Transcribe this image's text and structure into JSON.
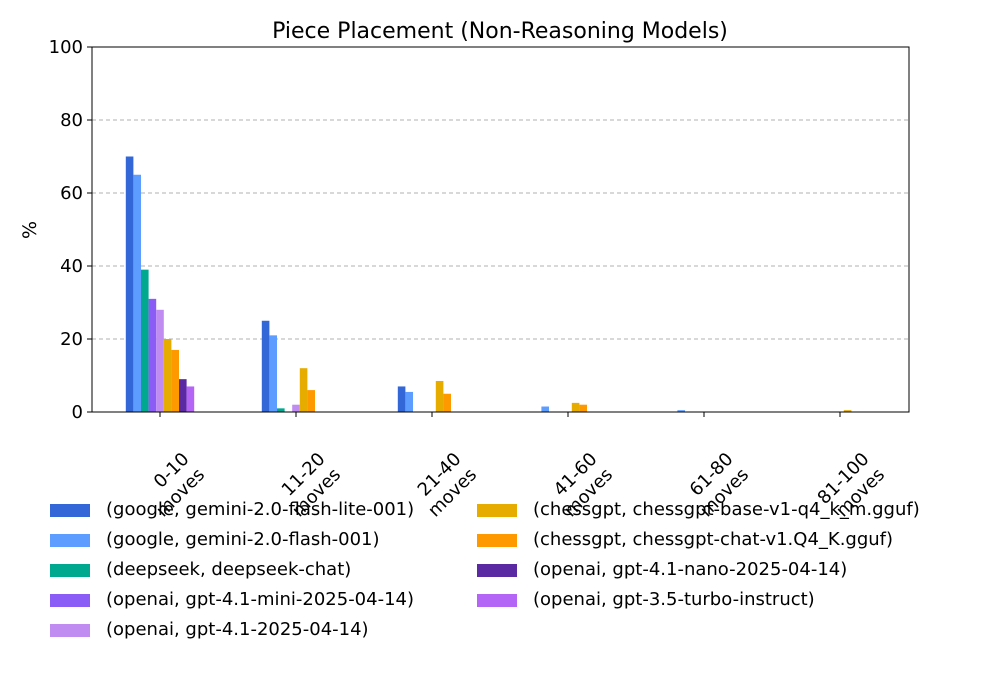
{
  "chart_data": {
    "type": "bar",
    "title": "Piece Placement (Non-Reasoning Models)",
    "xlabel": "",
    "ylabel": "%",
    "ylim": [
      0,
      100
    ],
    "yticks": [
      0,
      20,
      40,
      60,
      80,
      100
    ],
    "grid": "y-dashed",
    "legend_position": "bottom",
    "categories": [
      "0-10\nmoves",
      "11-20\nmoves",
      "21-40\nmoves",
      "41-60\nmoves",
      "61-80\nmoves",
      "81-100\nmoves"
    ],
    "series": [
      {
        "name": "(google, gemini-2.0-flash-lite-001)",
        "color": "#3366d6",
        "values": [
          70,
          25,
          7,
          0,
          0,
          0
        ]
      },
      {
        "name": "(google, gemini-2.0-flash-001)",
        "color": "#5c9dff",
        "values": [
          65,
          21,
          5.5,
          1.5,
          0.5,
          0
        ]
      },
      {
        "name": "(deepseek, deepseek-chat)",
        "color": "#00a88f",
        "values": [
          39,
          1,
          0,
          0,
          0,
          0
        ]
      },
      {
        "name": "(openai, gpt-4.1-mini-2025-04-14)",
        "color": "#8b5cf6",
        "values": [
          31,
          0,
          0,
          0,
          0,
          0
        ]
      },
      {
        "name": "(openai, gpt-4.1-2025-04-14)",
        "color": "#c08cf2",
        "values": [
          28,
          2,
          0,
          0,
          0,
          0
        ]
      },
      {
        "name": "(chessgpt, chessgpt-base-v1-q4_k_m.gguf)",
        "color": "#e6ac00",
        "values": [
          20,
          12,
          8.5,
          2.5,
          0,
          0.5
        ]
      },
      {
        "name": "(chessgpt, chessgpt-chat-v1.Q4_K.gguf)",
        "color": "#ff9900",
        "values": [
          17,
          6,
          5,
          2,
          0,
          0
        ]
      },
      {
        "name": "(openai, gpt-4.1-nano-2025-04-14)",
        "color": "#5b2aa3",
        "values": [
          9,
          0,
          0,
          0,
          0,
          0
        ]
      },
      {
        "name": "(openai, gpt-3.5-turbo-instruct)",
        "color": "#b565f5",
        "values": [
          7,
          0,
          0,
          0,
          0,
          0
        ]
      }
    ]
  }
}
